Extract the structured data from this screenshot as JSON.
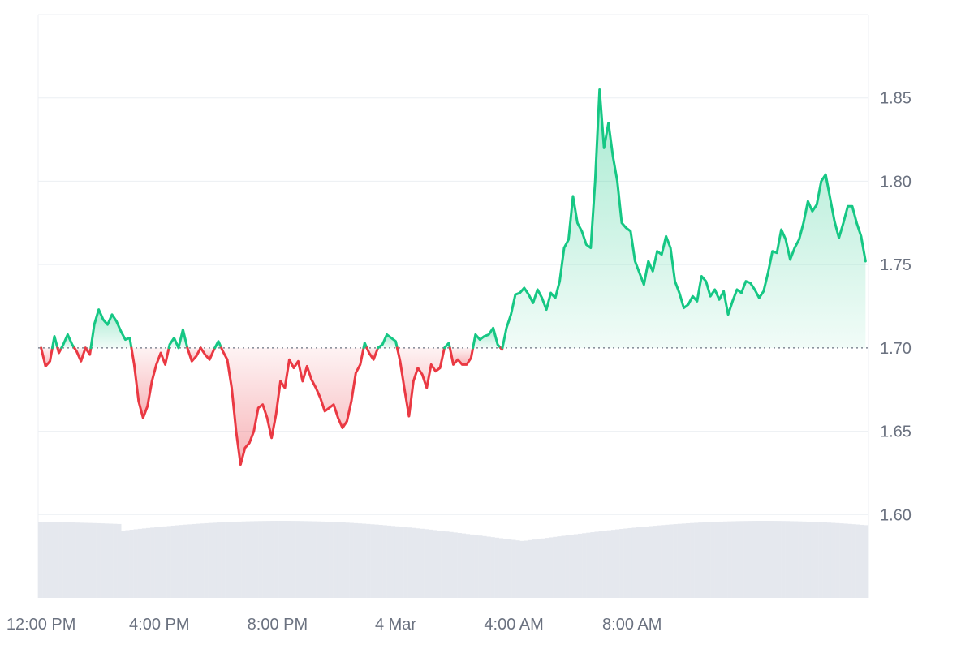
{
  "chart_data": {
    "type": "line",
    "title": "",
    "xlabel": "",
    "ylabel": "",
    "baseline": 1.7,
    "ylim": [
      1.55,
      1.9
    ],
    "y_ticks": [
      1.6,
      1.65,
      1.7,
      1.75,
      1.8,
      1.85
    ],
    "y_tick_labels": [
      "1.60",
      "1.65",
      "1.70",
      "1.75",
      "1.80",
      "1.85"
    ],
    "x_range_hours": [
      -0.1,
      24.1
    ],
    "x_ticks": [
      0,
      4,
      8,
      12,
      16,
      20
    ],
    "x_tick_labels": [
      "12:00 PM",
      "4:00 PM",
      "8:00 PM",
      "4 Mar",
      "4:00 AM",
      "8:00 AM"
    ],
    "colors": {
      "up": "#16c784",
      "down": "#ea3943",
      "up_fill": "#16c784",
      "down_fill": "#ea3943",
      "grid": "#eceff3",
      "baseline": "#6b7280",
      "volume": "#e5e8ee",
      "axis_text": "#6b7280"
    },
    "series": [
      {
        "points": [
          [
            0.0,
            1.7
          ],
          [
            0.15,
            1.689
          ],
          [
            0.3,
            1.692
          ],
          [
            0.45,
            1.707
          ],
          [
            0.6,
            1.697
          ],
          [
            0.75,
            1.702
          ],
          [
            0.9,
            1.708
          ],
          [
            1.05,
            1.702
          ],
          [
            1.2,
            1.698
          ],
          [
            1.35,
            1.692
          ],
          [
            1.5,
            1.7
          ],
          [
            1.65,
            1.696
          ],
          [
            1.8,
            1.714
          ],
          [
            1.95,
            1.723
          ],
          [
            2.1,
            1.717
          ],
          [
            2.25,
            1.714
          ],
          [
            2.4,
            1.72
          ],
          [
            2.55,
            1.716
          ],
          [
            2.7,
            1.71
          ],
          [
            2.85,
            1.705
          ],
          [
            3.0,
            1.706
          ],
          [
            3.15,
            1.69
          ],
          [
            3.3,
            1.668
          ],
          [
            3.45,
            1.658
          ],
          [
            3.6,
            1.665
          ],
          [
            3.75,
            1.68
          ],
          [
            3.9,
            1.69
          ],
          [
            4.05,
            1.697
          ],
          [
            4.2,
            1.69
          ],
          [
            4.35,
            1.702
          ],
          [
            4.5,
            1.706
          ],
          [
            4.65,
            1.7
          ],
          [
            4.8,
            1.711
          ],
          [
            4.95,
            1.7
          ],
          [
            5.1,
            1.692
          ],
          [
            5.25,
            1.695
          ],
          [
            5.4,
            1.7
          ],
          [
            5.55,
            1.696
          ],
          [
            5.7,
            1.693
          ],
          [
            5.85,
            1.699
          ],
          [
            6.0,
            1.704
          ],
          [
            6.15,
            1.698
          ],
          [
            6.3,
            1.693
          ],
          [
            6.45,
            1.676
          ],
          [
            6.6,
            1.65
          ],
          [
            6.75,
            1.63
          ],
          [
            6.9,
            1.64
          ],
          [
            7.05,
            1.643
          ],
          [
            7.2,
            1.65
          ],
          [
            7.35,
            1.664
          ],
          [
            7.5,
            1.666
          ],
          [
            7.65,
            1.658
          ],
          [
            7.8,
            1.646
          ],
          [
            7.95,
            1.66
          ],
          [
            8.1,
            1.68
          ],
          [
            8.25,
            1.676
          ],
          [
            8.4,
            1.693
          ],
          [
            8.55,
            1.688
          ],
          [
            8.7,
            1.692
          ],
          [
            8.85,
            1.68
          ],
          [
            9.0,
            1.689
          ],
          [
            9.15,
            1.681
          ],
          [
            9.3,
            1.676
          ],
          [
            9.45,
            1.67
          ],
          [
            9.6,
            1.662
          ],
          [
            9.75,
            1.664
          ],
          [
            9.9,
            1.666
          ],
          [
            10.05,
            1.658
          ],
          [
            10.2,
            1.652
          ],
          [
            10.35,
            1.656
          ],
          [
            10.5,
            1.668
          ],
          [
            10.65,
            1.685
          ],
          [
            10.8,
            1.69
          ],
          [
            10.95,
            1.703
          ],
          [
            11.1,
            1.697
          ],
          [
            11.25,
            1.693
          ],
          [
            11.4,
            1.7
          ],
          [
            11.55,
            1.702
          ],
          [
            11.7,
            1.708
          ],
          [
            11.85,
            1.706
          ],
          [
            12.0,
            1.704
          ],
          [
            12.15,
            1.692
          ],
          [
            12.3,
            1.675
          ],
          [
            12.45,
            1.659
          ],
          [
            12.6,
            1.68
          ],
          [
            12.75,
            1.688
          ],
          [
            12.9,
            1.684
          ],
          [
            13.05,
            1.676
          ],
          [
            13.2,
            1.69
          ],
          [
            13.35,
            1.686
          ],
          [
            13.5,
            1.688
          ],
          [
            13.65,
            1.7
          ],
          [
            13.8,
            1.703
          ],
          [
            13.95,
            1.69
          ],
          [
            14.1,
            1.693
          ],
          [
            14.25,
            1.69
          ],
          [
            14.4,
            1.69
          ],
          [
            14.55,
            1.694
          ],
          [
            14.7,
            1.708
          ],
          [
            14.85,
            1.705
          ],
          [
            15.0,
            1.707
          ],
          [
            15.15,
            1.708
          ],
          [
            15.3,
            1.712
          ],
          [
            15.45,
            1.702
          ],
          [
            15.6,
            1.699
          ],
          [
            15.75,
            1.712
          ],
          [
            15.9,
            1.72
          ],
          [
            16.05,
            1.732
          ],
          [
            16.2,
            1.733
          ],
          [
            16.35,
            1.736
          ],
          [
            16.5,
            1.732
          ],
          [
            16.65,
            1.727
          ],
          [
            16.8,
            1.735
          ],
          [
            16.95,
            1.73
          ],
          [
            17.1,
            1.723
          ],
          [
            17.25,
            1.733
          ],
          [
            17.4,
            1.73
          ],
          [
            17.55,
            1.74
          ],
          [
            17.7,
            1.76
          ],
          [
            17.85,
            1.765
          ],
          [
            18.0,
            1.791
          ],
          [
            18.15,
            1.775
          ],
          [
            18.3,
            1.77
          ],
          [
            18.45,
            1.762
          ],
          [
            18.6,
            1.76
          ],
          [
            18.75,
            1.8
          ],
          [
            18.9,
            1.855
          ],
          [
            19.05,
            1.82
          ],
          [
            19.2,
            1.835
          ],
          [
            19.35,
            1.815
          ],
          [
            19.5,
            1.8
          ],
          [
            19.65,
            1.775
          ],
          [
            19.8,
            1.772
          ],
          [
            19.95,
            1.77
          ],
          [
            20.1,
            1.752
          ],
          [
            20.25,
            1.745
          ],
          [
            20.4,
            1.738
          ],
          [
            20.55,
            1.752
          ],
          [
            20.7,
            1.746
          ],
          [
            20.85,
            1.758
          ],
          [
            21.0,
            1.756
          ],
          [
            21.15,
            1.767
          ],
          [
            21.3,
            1.76
          ],
          [
            21.45,
            1.74
          ],
          [
            21.6,
            1.733
          ],
          [
            21.75,
            1.724
          ],
          [
            21.9,
            1.726
          ],
          [
            22.05,
            1.731
          ],
          [
            22.2,
            1.728
          ],
          [
            22.35,
            1.743
          ],
          [
            22.5,
            1.74
          ],
          [
            22.65,
            1.731
          ],
          [
            22.8,
            1.735
          ],
          [
            22.95,
            1.729
          ],
          [
            23.1,
            1.734
          ],
          [
            23.25,
            1.72
          ],
          [
            23.4,
            1.728
          ],
          [
            23.55,
            1.735
          ],
          [
            23.7,
            1.733
          ],
          [
            23.85,
            1.74
          ],
          [
            24.0,
            1.739
          ],
          [
            24.15,
            1.735
          ],
          [
            24.3,
            1.73
          ],
          [
            24.45,
            1.734
          ],
          [
            24.6,
            1.745
          ],
          [
            24.75,
            1.758
          ],
          [
            24.9,
            1.757
          ],
          [
            25.05,
            1.771
          ],
          [
            25.2,
            1.765
          ],
          [
            25.35,
            1.753
          ],
          [
            25.5,
            1.76
          ],
          [
            25.65,
            1.765
          ],
          [
            25.8,
            1.775
          ],
          [
            25.95,
            1.788
          ],
          [
            26.1,
            1.782
          ],
          [
            26.25,
            1.786
          ],
          [
            26.4,
            1.8
          ],
          [
            26.55,
            1.804
          ],
          [
            26.7,
            1.79
          ],
          [
            26.85,
            1.776
          ],
          [
            27.0,
            1.766
          ],
          [
            27.15,
            1.775
          ],
          [
            27.3,
            1.785
          ],
          [
            27.45,
            1.785
          ],
          [
            27.6,
            1.775
          ],
          [
            27.75,
            1.767
          ],
          [
            27.9,
            1.752
          ]
        ]
      }
    ]
  }
}
